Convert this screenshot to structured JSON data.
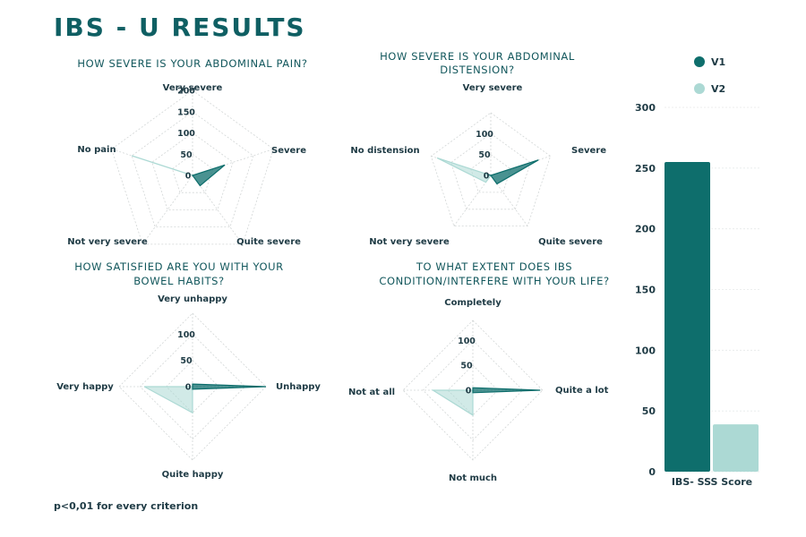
{
  "title": "IBS - U RESULTS",
  "footnote": "p<0,01 for every criterion",
  "colors": {
    "v1": "#0e6e6c",
    "v2": "#acd9d4",
    "title": "#0f5f63"
  },
  "chart_data": [
    {
      "type": "radar",
      "title_lines": [
        "HOW SEVERE IS YOUR ABDOMINAL PAIN?"
      ],
      "axes": [
        "Very severe",
        "Severe",
        "Quite severe",
        "Not very severe",
        "No pain"
      ],
      "ticks": [
        0,
        50,
        100,
        150,
        200
      ],
      "max": 200,
      "series": [
        {
          "name": "V1",
          "values": [
            0,
            80,
            30,
            0,
            0
          ]
        },
        {
          "name": "V2",
          "values": [
            0,
            0,
            0,
            0,
            150
          ]
        }
      ]
    },
    {
      "type": "radar",
      "title_lines": [
        "HOW SEVERE IS YOUR ABDOMINAL",
        "DISTENSION?"
      ],
      "axes": [
        "Very severe",
        "Severe",
        "Quite severe",
        "Not very severe",
        "No distension"
      ],
      "ticks": [
        0,
        50,
        100
      ],
      "max": 150,
      "series": [
        {
          "name": "V1",
          "values": [
            0,
            120,
            25,
            0,
            10
          ]
        },
        {
          "name": "V2",
          "values": [
            0,
            10,
            0,
            20,
            135
          ]
        }
      ]
    },
    {
      "type": "radar",
      "title_lines": [
        "HOW SATISFIED ARE YOU WITH YOUR",
        "BOWEL HABITS?"
      ],
      "axes": [
        "Very unhappy",
        "Unhappy",
        "Quite happy",
        "Very happy"
      ],
      "ticks": [
        0,
        50,
        100
      ],
      "max": 140,
      "series": [
        {
          "name": "V1",
          "values": [
            5,
            140,
            5,
            0
          ]
        },
        {
          "name": "V2",
          "values": [
            0,
            0,
            50,
            92
          ]
        }
      ]
    },
    {
      "type": "radar",
      "title_lines": [
        "TO WHAT EXTENT DOES IBS",
        "CONDITION/INTERFERE WITH YOUR LIFE?"
      ],
      "axes": [
        "Completely",
        "Quite a lot",
        "Not much",
        "Not at all"
      ],
      "ticks": [
        0,
        50,
        100
      ],
      "max": 140,
      "series": [
        {
          "name": "V1",
          "values": [
            5,
            135,
            5,
            0
          ]
        },
        {
          "name": "V2",
          "values": [
            0,
            0,
            50,
            80
          ]
        }
      ]
    },
    {
      "type": "bar",
      "categories": [
        "IBS- SSS Score"
      ],
      "series": [
        {
          "name": "V1",
          "values": [
            255
          ]
        },
        {
          "name": "V2",
          "values": [
            39
          ]
        }
      ],
      "yticks": [
        0,
        50,
        100,
        150,
        200,
        250,
        300
      ],
      "ylim": [
        0,
        300
      ],
      "legend": [
        "V1",
        "V2"
      ]
    }
  ]
}
